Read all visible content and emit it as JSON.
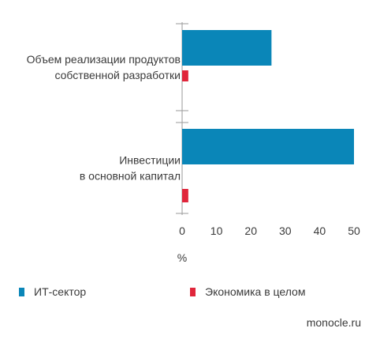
{
  "chart_data": {
    "type": "bar",
    "orientation": "horizontal",
    "categories": [
      [
        "Объем реализации продуктов",
        "собственной разработки"
      ],
      [
        "Инвестиции",
        "в основной капитал"
      ]
    ],
    "series": [
      {
        "name": "ИТ-сектор",
        "color": "#0a86b8",
        "values": [
          26,
          50
        ]
      },
      {
        "name": "Экономика в целом",
        "color": "#e0263b",
        "values": [
          1.8,
          1.8
        ]
      }
    ],
    "xlim": [
      0,
      50
    ],
    "xticks": [
      0,
      10,
      20,
      30,
      40,
      50
    ],
    "xlabel": "%",
    "ylabel": "",
    "title": "",
    "grid": false,
    "legend_position": "bottom"
  },
  "legend": {
    "items": [
      {
        "label": "ИТ-сектор",
        "color": "#0a86b8"
      },
      {
        "label": "Экономика в целом",
        "color": "#e0263b"
      }
    ]
  },
  "footer": {
    "source": "monocle.ru"
  }
}
